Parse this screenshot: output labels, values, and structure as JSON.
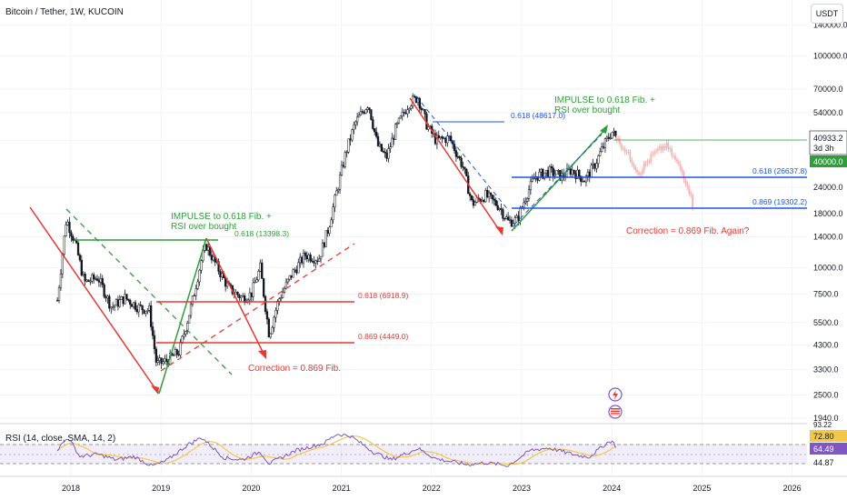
{
  "header": {
    "title": "Bitcoin / Tether, 1W, KUCOIN",
    "currency_button": "USDT"
  },
  "rsi_panel": {
    "label": "RSI (14, close, SMA, 14, 2)"
  },
  "colors": {
    "up": "#26a69a",
    "down": "#ef5350",
    "green": "#2e9d3a",
    "red": "#e53935",
    "blue": "#1e53e5",
    "rsi": "#7e57c2",
    "sma": "#f2c84b"
  },
  "annotations": {
    "impulse_2019": "IMPULSE to 0.618 Fib. +",
    "impulse_2019_line2": "RSI over bought",
    "fib_13398": "0.618 (13398.3)",
    "fib_6918": "0.618 (6918.9)",
    "fib_4449": "0.869 (4449.0)",
    "correction_2019": "Correction = 0.869 Fib.",
    "fib_48617": "0.618 (48617.0)",
    "impulse_2023": "IMPULSE to 0.618 Fib. +",
    "impulse_2023_line2": "RSI over bought",
    "fib_26637": "0.618 (26637.8)",
    "fib_19302": "0.869 (19302.2)",
    "correction_2024": "Correction = 0.869 Fib. Again?"
  },
  "price_tags": {
    "last": "40933.2",
    "countdown": "3d 3h",
    "level": "40000.0"
  },
  "rsi_tags": {
    "upper": "72.80",
    "value": "64.49",
    "lower": "44.87",
    "top": "93.22"
  },
  "chart_data": {
    "type": "candlestick",
    "title": "Bitcoin / Tether, 1W, KUCOIN",
    "y_scale": "log",
    "y_ticks": [
      "140000.0",
      "100000.0",
      "70000.0",
      "54000.0",
      "40000.0",
      "24000.0",
      "18000.0",
      "14000.0",
      "10000.0",
      "7500.0",
      "5500.0",
      "4300.0",
      "3300.0",
      "2500.0",
      "1940.0"
    ],
    "x_ticks": [
      "2018",
      "2019",
      "2020",
      "2021",
      "2022",
      "2023",
      "2024",
      "2025",
      "2026"
    ],
    "series": [
      {
        "name": "Price (approx.)",
        "points": [
          [
            2017.85,
            7000
          ],
          [
            2017.95,
            17000
          ],
          [
            2018.05,
            13000
          ],
          [
            2018.15,
            8500
          ],
          [
            2018.3,
            9000
          ],
          [
            2018.45,
            6500
          ],
          [
            2018.6,
            7200
          ],
          [
            2018.75,
            6500
          ],
          [
            2018.87,
            6300
          ],
          [
            2018.95,
            3500
          ],
          [
            2019.05,
            3600
          ],
          [
            2019.2,
            4000
          ],
          [
            2019.35,
            7000
          ],
          [
            2019.45,
            11000
          ],
          [
            2019.5,
            12800
          ],
          [
            2019.6,
            10500
          ],
          [
            2019.75,
            8000
          ],
          [
            2019.9,
            7200
          ],
          [
            2020.0,
            7500
          ],
          [
            2020.1,
            10000
          ],
          [
            2020.2,
            4800
          ],
          [
            2020.3,
            7000
          ],
          [
            2020.45,
            9300
          ],
          [
            2020.6,
            11500
          ],
          [
            2020.75,
            11000
          ],
          [
            2020.85,
            15000
          ],
          [
            2020.95,
            23000
          ],
          [
            2021.05,
            35000
          ],
          [
            2021.15,
            48000
          ],
          [
            2021.3,
            60000
          ],
          [
            2021.4,
            38000
          ],
          [
            2021.5,
            33000
          ],
          [
            2021.6,
            45000
          ],
          [
            2021.75,
            60000
          ],
          [
            2021.85,
            64000
          ],
          [
            2021.95,
            47000
          ],
          [
            2022.05,
            40000
          ],
          [
            2022.2,
            41000
          ],
          [
            2022.35,
            30000
          ],
          [
            2022.45,
            20000
          ],
          [
            2022.6,
            22000
          ],
          [
            2022.75,
            19500
          ],
          [
            2022.85,
            16500
          ],
          [
            2022.95,
            16800
          ],
          [
            2023.05,
            22000
          ],
          [
            2023.15,
            27000
          ],
          [
            2023.3,
            28500
          ],
          [
            2023.45,
            27000
          ],
          [
            2023.55,
            29000
          ],
          [
            2023.7,
            26000
          ],
          [
            2023.8,
            30000
          ],
          [
            2023.9,
            37000
          ],
          [
            2024.0,
            44000
          ],
          [
            2024.05,
            40933
          ]
        ]
      },
      {
        "name": "Projection (approx.)",
        "points": [
          [
            2024.05,
            40933
          ],
          [
            2024.15,
            36000
          ],
          [
            2024.3,
            28000
          ],
          [
            2024.45,
            34000
          ],
          [
            2024.6,
            38000
          ],
          [
            2024.75,
            30000
          ],
          [
            2024.85,
            24000
          ],
          [
            2024.9,
            19300
          ]
        ]
      }
    ],
    "rsi": {
      "levels": [
        70,
        50,
        30
      ],
      "last": 64.49,
      "points": [
        [
          2017.85,
          60
        ],
        [
          2017.97,
          85
        ],
        [
          2018.1,
          45
        ],
        [
          2018.3,
          50
        ],
        [
          2018.5,
          38
        ],
        [
          2018.7,
          45
        ],
        [
          2018.9,
          25
        ],
        [
          2019.05,
          35
        ],
        [
          2019.3,
          70
        ],
        [
          2019.45,
          85
        ],
        [
          2019.7,
          42
        ],
        [
          2019.9,
          38
        ],
        [
          2020.1,
          55
        ],
        [
          2020.2,
          30
        ],
        [
          2020.5,
          58
        ],
        [
          2020.8,
          72
        ],
        [
          2020.95,
          92
        ],
        [
          2021.1,
          88
        ],
        [
          2021.35,
          55
        ],
        [
          2021.55,
          38
        ],
        [
          2021.85,
          62
        ],
        [
          2022.05,
          40
        ],
        [
          2022.4,
          28
        ],
        [
          2022.6,
          32
        ],
        [
          2022.85,
          26
        ],
        [
          2023.1,
          58
        ],
        [
          2023.3,
          63
        ],
        [
          2023.6,
          48
        ],
        [
          2023.75,
          44
        ],
        [
          2023.95,
          74
        ],
        [
          2024.0,
          78
        ],
        [
          2024.05,
          64.49
        ]
      ]
    }
  }
}
